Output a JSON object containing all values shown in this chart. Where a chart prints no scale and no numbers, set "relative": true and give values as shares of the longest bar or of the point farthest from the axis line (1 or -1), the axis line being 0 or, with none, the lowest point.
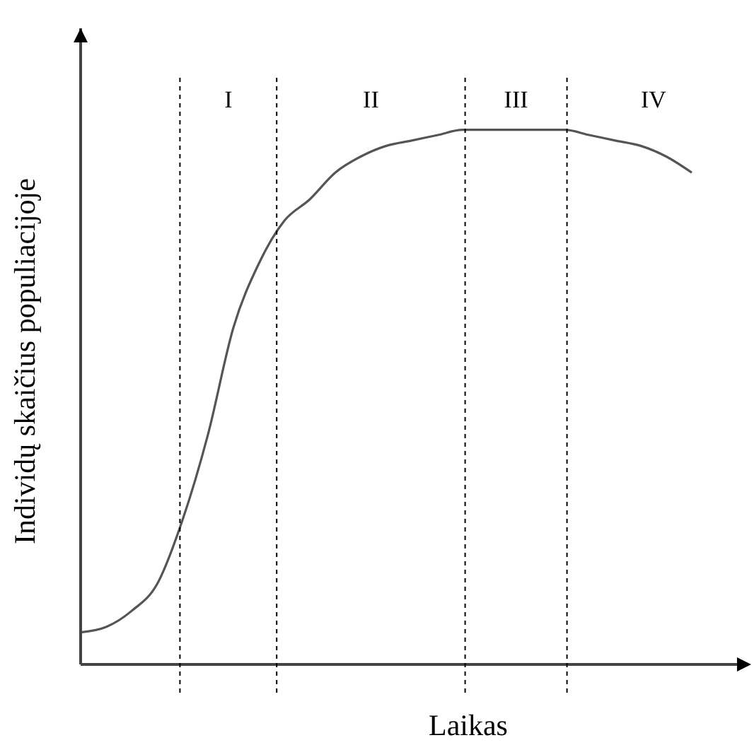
{
  "chart_data": {
    "type": "line",
    "relative": true,
    "xlabel": "Laikas",
    "ylabel": "Individų skaičius populiacijoje",
    "categories": [
      null,
      null,
      null,
      null,
      null,
      null,
      null,
      null,
      null,
      null,
      null,
      null,
      null,
      null,
      null,
      null,
      null,
      null,
      null,
      null,
      null,
      null,
      null,
      null,
      null,
      null,
      null
    ],
    "series": [
      {
        "color": "#555555",
        "values": [
          0.06,
          0.07,
          0.1,
          0.15,
          0.27,
          0.43,
          0.63,
          0.75,
          0.83,
          0.87,
          0.92,
          0.95,
          0.97,
          0.98,
          0.99,
          1,
          1,
          1,
          1,
          1,
          0.99,
          0.98,
          0.97,
          0.95,
          0.92,
          null,
          null
        ]
      }
    ],
    "marker": "none",
    "line_style": "solid",
    "grid": "x",
    "annotations": [
      "I",
      "II",
      "III",
      "IV"
    ]
  }
}
